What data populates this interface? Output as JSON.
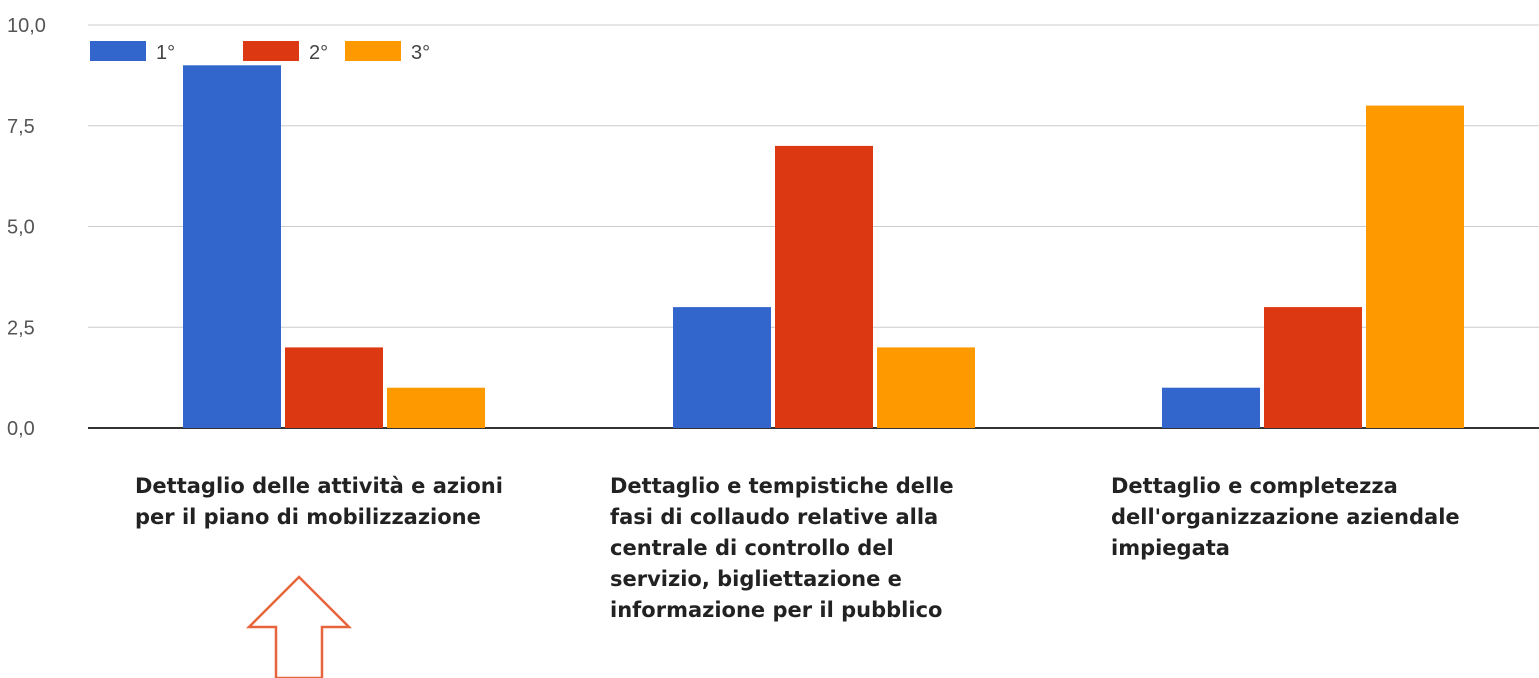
{
  "chart_data": {
    "type": "bar",
    "categories": [
      "Dettaglio delle attività e azioni\nper il piano di mobilizzazione",
      "Dettaglio e tempistiche delle\nfasi di collaudo relative alla\ncentrale di controllo del\nservizio, bigliettazione e\ninformazione per il pubblico",
      "Dettaglio e completezza\ndell'organizzazione aziendale\nimpiegata"
    ],
    "series": [
      {
        "name": "1°",
        "values": [
          9,
          3,
          1
        ],
        "color": "#3366CC"
      },
      {
        "name": "2°",
        "values": [
          2,
          7,
          3
        ],
        "color": "#DC3912"
      },
      {
        "name": "3°",
        "values": [
          1,
          2,
          8
        ],
        "color": "#FF9900"
      }
    ],
    "yticks": [
      "0,0",
      "2,5",
      "5,0",
      "7,5",
      "10,0"
    ],
    "ytick_values": [
      0,
      2.5,
      5,
      7.5,
      10
    ],
    "ylim": [
      0,
      10
    ],
    "grid": true,
    "legend_position": "top-left",
    "title": "",
    "xlabel": "",
    "ylabel": ""
  },
  "annotation": {
    "shape": "arrow-up-outline",
    "color": "#E8643C"
  }
}
